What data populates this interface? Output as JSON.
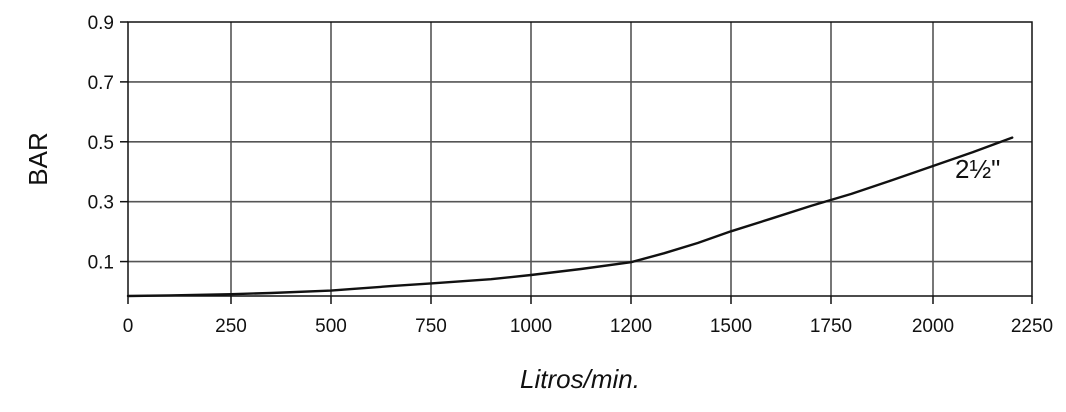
{
  "chart_data": {
    "type": "line",
    "title": "",
    "xlabel": "Litros/min.",
    "ylabel": "BAR",
    "x_ticks": [
      "0",
      "250",
      "500",
      "750",
      "1000",
      "1200",
      "1500",
      "1750",
      "2000",
      "2250"
    ],
    "y_ticks": [
      "0.9",
      "0.7",
      "0.5",
      "0.3",
      "0.1"
    ],
    "y_tick_values": [
      0.9,
      0.7,
      0.5,
      0.3,
      0.1
    ],
    "ylim": [
      -0.015,
      0.9
    ],
    "grid": true,
    "series": [
      {
        "name": "2½\"",
        "color": "#111111",
        "x": [
          0,
          100,
          250,
          350,
          500,
          550,
          650,
          750,
          900,
          1000,
          1100,
          1200,
          1300,
          1400,
          1500,
          1600,
          1700,
          1800,
          1900,
          2000,
          2100,
          2200
        ],
        "y": [
          -0.015,
          -0.013,
          -0.009,
          -0.005,
          0.003,
          0.008,
          0.018,
          0.027,
          0.041,
          0.055,
          0.075,
          0.098,
          0.128,
          0.162,
          0.201,
          0.243,
          0.286,
          0.326,
          0.372,
          0.419,
          0.465,
          0.514
        ]
      }
    ],
    "annotations": [
      {
        "text": "2½\"",
        "x": 2060,
        "y": 0.38
      }
    ]
  }
}
